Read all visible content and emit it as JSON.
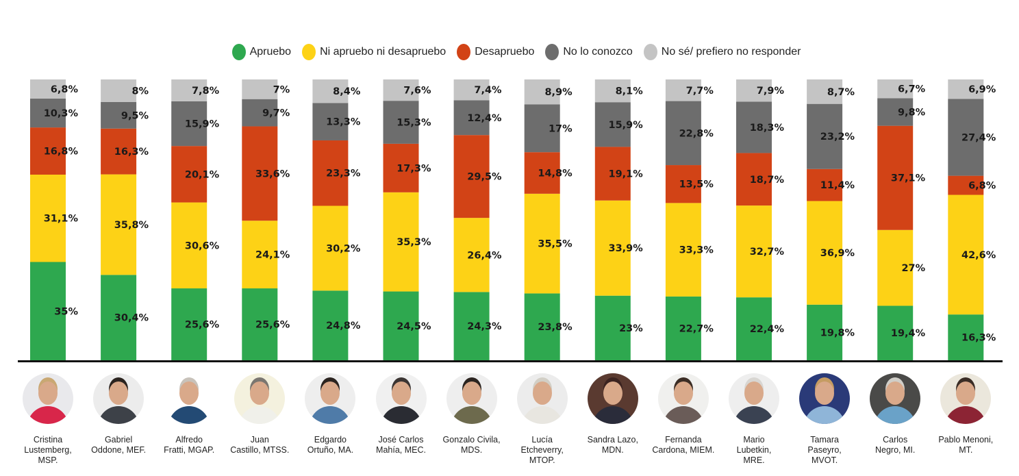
{
  "chart_data": {
    "type": "bar",
    "stacked": true,
    "orientation": "vertical",
    "title": "",
    "xlabel": "",
    "ylabel": "",
    "ylim": [
      0,
      100
    ],
    "grid": false,
    "legend_position": "top-center",
    "categories": [
      "Cristina Lustemberg, MSP.",
      "Gabriel Oddone, MEF.",
      "Alfredo Fratti, MGAP.",
      "Juan Castillo, MTSS.",
      "Edgardo Ortuño, MA.",
      "José Carlos Mahía, MEC.",
      "Gonzalo Civila, MDS.",
      "Lucía Etcheverry, MTOP.",
      "Sandra Lazo, MDN.",
      "Fernanda Cardona, MIEM.",
      "Mario Lubetkin, MRE.",
      "Tamara Paseyro, MVOT.",
      "Carlos Negro, MI.",
      "Pablo Menoni, MT."
    ],
    "series": [
      {
        "name": "Apruebo",
        "color": "#2ea84f",
        "values": [
          35,
          30.4,
          25.6,
          25.6,
          24.8,
          24.5,
          24.3,
          23.8,
          23,
          22.7,
          22.4,
          19.8,
          19.4,
          16.3
        ],
        "labels": [
          "35%",
          "30,4%",
          "25,6%",
          "25,6%",
          "24,8%",
          "24,5%",
          "24,3%",
          "23,8%",
          "23%",
          "22,7%",
          "22,4%",
          "19,8%",
          "19,4%",
          "16,3%"
        ]
      },
      {
        "name": "Ni apruebo ni desapruebo",
        "color": "#fdd216",
        "values": [
          31.1,
          35.8,
          30.6,
          24.1,
          30.2,
          35.3,
          26.4,
          35.5,
          33.9,
          33.3,
          32.7,
          36.9,
          27,
          42.6
        ],
        "labels": [
          "31,1%",
          "35,8%",
          "30,6%",
          "24,1%",
          "30,2%",
          "35,3%",
          "26,4%",
          "35,5%",
          "33,9%",
          "33,3%",
          "32,7%",
          "36,9%",
          "27%",
          "42,6%"
        ]
      },
      {
        "name": "Desapruebo",
        "color": "#d24316",
        "values": [
          16.8,
          16.3,
          20.1,
          33.6,
          23.3,
          17.3,
          29.5,
          14.8,
          19.1,
          13.5,
          18.7,
          11.4,
          37.1,
          6.8
        ],
        "labels": [
          "16,8%",
          "16,3%",
          "20,1%",
          "33,6%",
          "23,3%",
          "17,3%",
          "29,5%",
          "14,8%",
          "19,1%",
          "13,5%",
          "18,7%",
          "11,4%",
          "37,1%",
          "6,8%"
        ]
      },
      {
        "name": "No lo conozco",
        "color": "#6d6d6d",
        "values": [
          10.3,
          9.5,
          15.9,
          9.7,
          13.3,
          15.3,
          12.4,
          17,
          15.9,
          22.8,
          18.3,
          23.2,
          9.8,
          27.4
        ],
        "labels": [
          "10,3%",
          "9,5%",
          "15,9%",
          "9,7%",
          "13,3%",
          "15,3%",
          "12,4%",
          "17%",
          "15,9%",
          "22,8%",
          "18,3%",
          "23,2%",
          "9,8%",
          "27,4%"
        ]
      },
      {
        "name": "No sé/ prefiero no responder",
        "color": "#c4c4c4",
        "values": [
          6.8,
          8,
          7.8,
          7,
          8.4,
          7.6,
          7.4,
          8.9,
          8.1,
          7.7,
          7.9,
          8.7,
          6.7,
          6.9
        ],
        "labels": [
          "6,8%",
          "8%",
          "7,8%",
          "7%",
          "8,4%",
          "7,6%",
          "7,4%",
          "8,9%",
          "8,1%",
          "7,7%",
          "7,9%",
          "8,7%",
          "6,7%",
          "6,9%"
        ]
      }
    ]
  },
  "people": [
    {
      "name_lines": [
        "Cristina",
        "Lustemberg,",
        "MSP."
      ],
      "avatar_bg": "#e9e9ec",
      "shirt": "#d8264a",
      "hair": "#c9a873"
    },
    {
      "name_lines": [
        "Gabriel",
        "Oddone, MEF."
      ],
      "avatar_bg": "#ececec",
      "shirt": "#3d4148",
      "hair": "#2b2420"
    },
    {
      "name_lines": [
        "Alfredo",
        "Fratti, MGAP."
      ],
      "avatar_bg": "#ffffff",
      "shirt": "#234a74",
      "hair": "#c8c2ba"
    },
    {
      "name_lines": [
        "Juan",
        "Castillo, MTSS."
      ],
      "avatar_bg": "#f4f1de",
      "shirt": "#f0f0ea",
      "hair": "#7a7670"
    },
    {
      "name_lines": [
        "Edgardo",
        "Ortuño, MA."
      ],
      "avatar_bg": "#eeeeee",
      "shirt": "#4f7ba8",
      "hair": "#2b2420"
    },
    {
      "name_lines": [
        "José Carlos",
        "Mahía, MEC."
      ],
      "avatar_bg": "#f0f0f0",
      "shirt": "#2a2c33",
      "hair": "#3b3533"
    },
    {
      "name_lines": [
        "Gonzalo Civila,",
        "MDS."
      ],
      "avatar_bg": "#eeeeee",
      "shirt": "#6d6a4d",
      "hair": "#2b2420"
    },
    {
      "name_lines": [
        "Lucía",
        "Etcheverry,",
        "MTOP."
      ],
      "avatar_bg": "#ececec",
      "shirt": "#e8e6e0",
      "hair": "#d2cfc6"
    },
    {
      "name_lines": [
        "Sandra Lazo,",
        "MDN."
      ],
      "avatar_bg": "#5a3a30",
      "shirt": "#2a2c3a",
      "hair": "#3b2320"
    },
    {
      "name_lines": [
        "Fernanda",
        "Cardona, MIEM."
      ],
      "avatar_bg": "#f0f0ee",
      "shirt": "#6a5c58",
      "hair": "#3b2d25"
    },
    {
      "name_lines": [
        "Mario",
        "Lubetkin,",
        "MRE."
      ],
      "avatar_bg": "#eeeeee",
      "shirt": "#3a4252",
      "hair": "#d8d6d2"
    },
    {
      "name_lines": [
        "Tamara",
        "Paseyro,",
        "MVOT."
      ],
      "avatar_bg": "#2a3a78",
      "shirt": "#8fb5d8",
      "hair": "#c59c62"
    },
    {
      "name_lines": [
        "Carlos",
        "Negro, MI."
      ],
      "avatar_bg": "#4a4a48",
      "shirt": "#6aa2c8",
      "hair": "#d0cec8"
    },
    {
      "name_lines": [
        "Pablo Menoni,",
        "MT."
      ],
      "avatar_bg": "#ebe7dc",
      "shirt": "#8c2434",
      "hair": "#3a2d26"
    }
  ]
}
